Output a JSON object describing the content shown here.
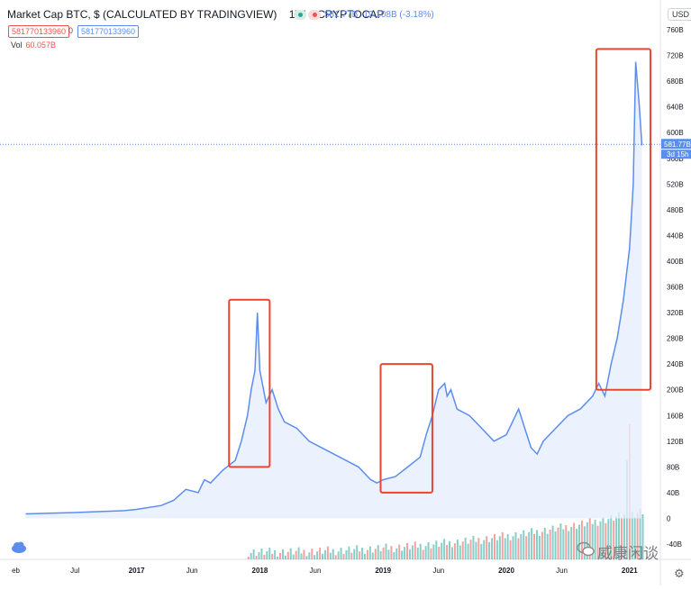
{
  "header": {
    "title": "Market Cap BTC, $ (CALCULATED BY TRADINGVIEW)",
    "interval": "1W",
    "source": "CRYPTOCAP",
    "price_line": "581.77B -19.108B (-3.18%)",
    "badge_red": "581770133960",
    "badge_zero": "0",
    "badge_blue": "581770133960",
    "vol_label": "Vol",
    "vol_value": "60.057B",
    "currency": "USD",
    "watermark": "威康闲谈"
  },
  "colors": {
    "line": "#5b8def",
    "area": "#e7effd",
    "up": "#26a69a",
    "down": "#ef5350",
    "highlight_box": "#e8472d",
    "axis_text": "#131722"
  },
  "icons": [
    "cloud-icon",
    "gear-icon",
    "wechat-icon"
  ],
  "chart_data": {
    "type": "area",
    "title": "Market Cap BTC, $ (CALCULATED BY TRADINGVIEW)",
    "xlabel": "",
    "ylabel": "",
    "y_axis_labels": [
      "760B",
      "720B",
      "680B",
      "640B",
      "600B",
      "560B",
      "520B",
      "480B",
      "440B",
      "400B",
      "360B",
      "320B",
      "280B",
      "240B",
      "200B",
      "160B",
      "120B",
      "80B",
      "40B",
      "0",
      "-40B"
    ],
    "ylim": [
      -40,
      760
    ],
    "x_axis_labels": [
      "eb",
      "Jul",
      "2017",
      "Jun",
      "2018",
      "Jun",
      "2019",
      "Jun",
      "2020",
      "Jun",
      "2021"
    ],
    "last_value_label": "581.77B",
    "countdown_label": "3d 15h",
    "grid": false,
    "series": [
      {
        "x": [
          2016.1,
          2016.5,
          2016.9,
          2017.0,
          2017.2,
          2017.3,
          2017.4,
          2017.5,
          2017.55,
          2017.6,
          2017.7,
          2017.8,
          2017.85,
          2017.9,
          2017.93,
          2017.96,
          2017.98,
          2018.0,
          2018.05,
          2018.1,
          2018.15,
          2018.2,
          2018.3,
          2018.4,
          2018.5,
          2018.6,
          2018.7,
          2018.8,
          2018.85,
          2018.9,
          2018.95,
          2019.0,
          2019.1,
          2019.2,
          2019.3,
          2019.35,
          2019.4,
          2019.45,
          2019.5,
          2019.52,
          2019.55,
          2019.6,
          2019.7,
          2019.8,
          2019.9,
          2020.0,
          2020.1,
          2020.15,
          2020.2,
          2020.25,
          2020.3,
          2020.4,
          2020.5,
          2020.6,
          2020.7,
          2020.75,
          2020.8,
          2020.85,
          2020.9,
          2020.95,
          2021.0,
          2021.03,
          2021.05,
          2021.08,
          2021.1
        ],
        "values": [
          7,
          9,
          12,
          14,
          20,
          28,
          45,
          40,
          60,
          55,
          75,
          90,
          120,
          160,
          200,
          230,
          320,
          230,
          180,
          200,
          170,
          150,
          140,
          120,
          110,
          100,
          90,
          80,
          70,
          60,
          55,
          60,
          65,
          80,
          95,
          130,
          160,
          200,
          210,
          190,
          200,
          170,
          160,
          140,
          120,
          130,
          170,
          140,
          110,
          100,
          120,
          140,
          160,
          170,
          190,
          210,
          190,
          240,
          280,
          340,
          420,
          520,
          710,
          640,
          580
        ]
      }
    ],
    "annotations": [
      {
        "shape": "rectangle",
        "x_range": [
          2017.75,
          2018.08
        ],
        "y_range": [
          80,
          340
        ]
      },
      {
        "shape": "rectangle",
        "x_range": [
          2018.98,
          2019.4
        ],
        "y_range": [
          40,
          240
        ]
      },
      {
        "shape": "rectangle",
        "x_range": [
          2020.73,
          2021.17
        ],
        "y_range": [
          200,
          730
        ]
      }
    ],
    "volume": {
      "note": "weekly volume histogram at bottom, rising sharply into 2021; latest 60.057B",
      "max_recent": 150
    }
  }
}
